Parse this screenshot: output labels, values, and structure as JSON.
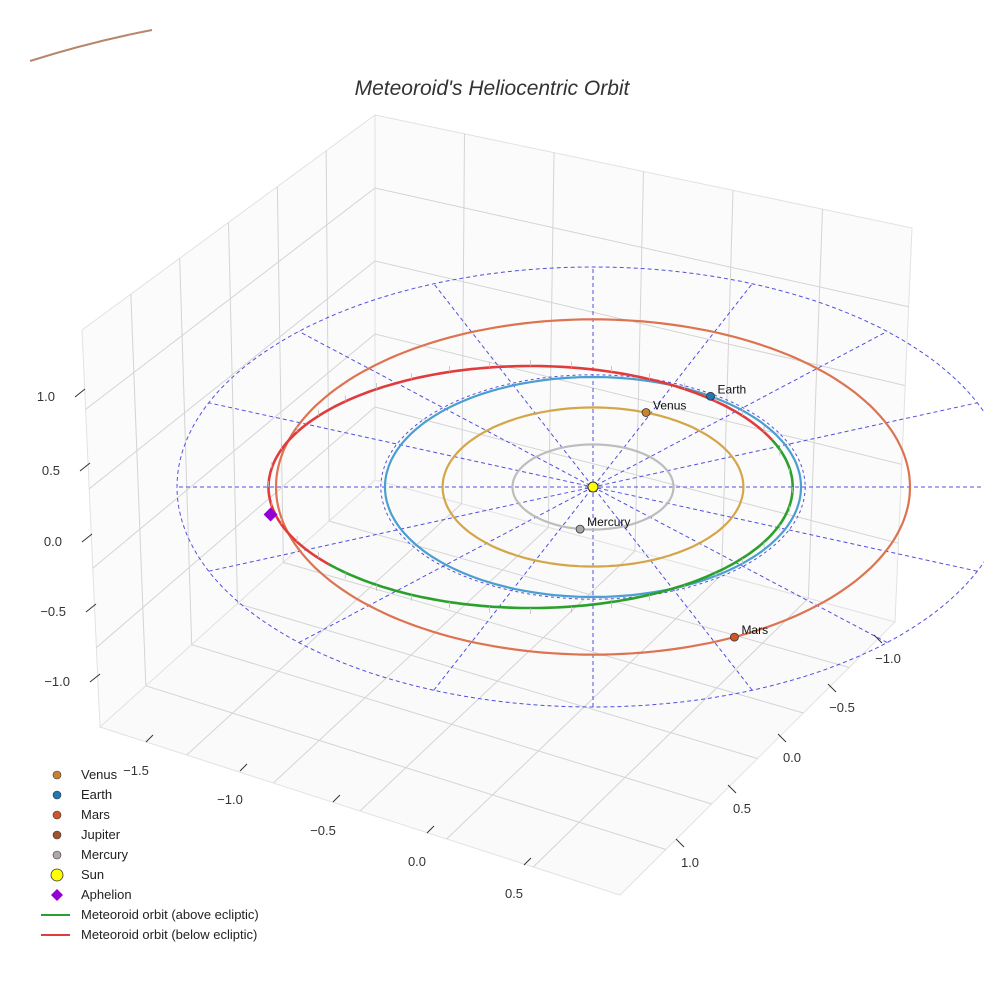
{
  "chart_data": {
    "type": "line",
    "projection": "3d",
    "title": "Meteoroid's Heliocentric Orbit",
    "xlabel": "",
    "ylabel": "",
    "zlabel": "",
    "x_ticks": [
      "−1.5",
      "−1.0",
      "−0.5",
      "0.0",
      "0.5"
    ],
    "y_ticks": [
      "−1.0",
      "−0.5",
      "0.0",
      "0.5",
      "1.0"
    ],
    "z_ticks": [
      "1.0",
      "0.5",
      "0.0",
      "−0.5",
      "−1.0"
    ],
    "grid": true,
    "legend_position": "bottom-left",
    "planets": [
      {
        "name": "Venus",
        "label": "Venus",
        "orbit_radius_au": 0.723,
        "x": 0.255,
        "y": -0.677,
        "color": "#c9822e",
        "orbit_color": "#d4a64a"
      },
      {
        "name": "Earth",
        "label": "Earth",
        "orbit_radius_au": 1.0,
        "x": 0.565,
        "y": -0.825,
        "color": "#1f77b4",
        "orbit_color": "#4a9fd0"
      },
      {
        "name": "Mars",
        "label": "Mars",
        "orbit_radius_au": 1.524,
        "x": 0.68,
        "y": 1.365,
        "color": "#d2552a",
        "orbit_color": "#dd7350"
      },
      {
        "name": "Jupiter",
        "label": "",
        "x": null,
        "y": null,
        "color": "#a0522d"
      },
      {
        "name": "Mercury",
        "label": "Mercury",
        "orbit_radius_au": 0.387,
        "x": -0.062,
        "y": 0.383,
        "color": "#a9a9a9",
        "orbit_color": "#bdbdbd"
      }
    ],
    "sun": {
      "name": "Sun",
      "x": 0,
      "y": 0,
      "color": "#ffff00"
    },
    "aphelion": {
      "name": "Aphelion",
      "x": -1.55,
      "y": 0.25,
      "z": 0.0,
      "color": "#9400d3"
    },
    "meteoroid_orbit": {
      "semi_major_axis_au": 1.26,
      "center_x": -0.3,
      "center_y": 0.0,
      "semi_minor_axis_au": 1.1,
      "above_color": "#2ca02c",
      "below_color": "#e03c3c",
      "above_label": "Meteoroid orbit (above ecliptic)",
      "below_label": "Meteoroid orbit (below ecliptic)"
    },
    "ecliptic_grid": {
      "outer_radius_au": 2.0,
      "mid_radius_au": 1.0,
      "spokes": 8,
      "color": "#5050e0"
    }
  },
  "legend": [
    {
      "label": "Venus",
      "marker": "circle",
      "color": "#c9822e"
    },
    {
      "label": "Earth",
      "marker": "circle",
      "color": "#1f77b4"
    },
    {
      "label": "Mars",
      "marker": "circle",
      "color": "#d2552a"
    },
    {
      "label": "Jupiter",
      "marker": "circle",
      "color": "#a0522d"
    },
    {
      "label": "Mercury",
      "marker": "circle",
      "color": "#b0a8a8"
    },
    {
      "label": "Sun",
      "marker": "circle-large",
      "color": "#ffff00"
    },
    {
      "label": "Aphelion",
      "marker": "diamond",
      "color": "#9400d3"
    },
    {
      "label": "Meteoroid orbit (above ecliptic)",
      "marker": "line",
      "color": "#2ca02c"
    },
    {
      "label": "Meteoroid orbit (below ecliptic)",
      "marker": "line",
      "color": "#e03c3c"
    }
  ]
}
